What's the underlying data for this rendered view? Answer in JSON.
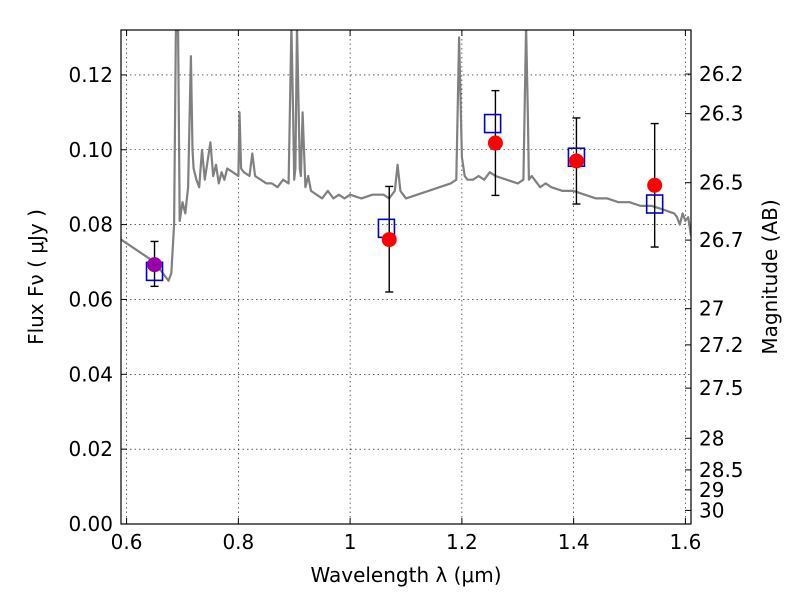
{
  "chart_data": {
    "type": "scatter",
    "xlabel": "Wavelength  λ (μm)",
    "ylabel": "Flux  Fν  ( μJy )",
    "ylabel_right": "Magnitude (AB)",
    "xlim": [
      0.59,
      1.61
    ],
    "ylim": [
      0.0,
      0.132
    ],
    "grid": true,
    "x_ticks": [
      {
        "value": 0.6,
        "label": "0.6"
      },
      {
        "value": 0.8,
        "label": "0.8"
      },
      {
        "value": 1.0,
        "label": "1"
      },
      {
        "value": 1.2,
        "label": "1.2"
      },
      {
        "value": 1.4,
        "label": "1.4"
      },
      {
        "value": 1.6,
        "label": "1.6"
      }
    ],
    "y_ticks": [
      {
        "value": 0.0,
        "label": "0.00"
      },
      {
        "value": 0.02,
        "label": "0.02"
      },
      {
        "value": 0.04,
        "label": "0.04"
      },
      {
        "value": 0.06,
        "label": "0.06"
      },
      {
        "value": 0.08,
        "label": "0.08"
      },
      {
        "value": 0.1,
        "label": "0.10"
      },
      {
        "value": 0.12,
        "label": "0.12"
      }
    ],
    "mag_ticks": [
      {
        "mag": 26.2,
        "label": "26.2"
      },
      {
        "mag": 26.3,
        "label": "26.3"
      },
      {
        "mag": 26.5,
        "label": "26.5"
      },
      {
        "mag": 26.7,
        "label": "26.7"
      },
      {
        "mag": 27.0,
        "label": "27"
      },
      {
        "mag": 27.2,
        "label": "27.2"
      },
      {
        "mag": 27.5,
        "label": "27.5"
      },
      {
        "mag": 28.0,
        "label": "28"
      },
      {
        "mag": 28.5,
        "label": "28.5"
      },
      {
        "mag": 29.0,
        "label": "29"
      },
      {
        "mag": 30.0,
        "label": "30"
      }
    ],
    "series": [
      {
        "kind": "observed",
        "marker": "circle",
        "points": [
          {
            "x": 0.65,
            "y": 0.0693,
            "yerr_low": 0.0058,
            "yerr_high": 0.0062,
            "color": "#9900aa"
          },
          {
            "x": 1.07,
            "y": 0.076,
            "yerr_low": 0.014,
            "yerr_high": 0.0142,
            "color": "#ff0000"
          },
          {
            "x": 1.26,
            "y": 0.1018,
            "yerr_low": 0.014,
            "yerr_high": 0.014,
            "color": "#ff0000"
          },
          {
            "x": 1.405,
            "y": 0.097,
            "yerr_low": 0.0115,
            "yerr_high": 0.0115,
            "color": "#ff0000"
          },
          {
            "x": 1.545,
            "y": 0.0905,
            "yerr_low": 0.0165,
            "yerr_high": 0.0165,
            "color": "#ff0000"
          }
        ]
      },
      {
        "kind": "model",
        "marker": "square",
        "color": "#0000cc",
        "points": [
          {
            "x": 0.65,
            "y": 0.0675
          },
          {
            "x": 1.065,
            "y": 0.079
          },
          {
            "x": 1.255,
            "y": 0.107
          },
          {
            "x": 1.405,
            "y": 0.098
          },
          {
            "x": 1.545,
            "y": 0.0855
          }
        ]
      }
    ],
    "spectrum": {
      "color": "#808080",
      "x": [
        0.59,
        0.6,
        0.62,
        0.64,
        0.66,
        0.67,
        0.675,
        0.68,
        0.685,
        0.688,
        0.69,
        0.692,
        0.695,
        0.7,
        0.705,
        0.71,
        0.715,
        0.718,
        0.72,
        0.725,
        0.73,
        0.735,
        0.74,
        0.745,
        0.75,
        0.755,
        0.76,
        0.765,
        0.77,
        0.775,
        0.78,
        0.79,
        0.8,
        0.802,
        0.805,
        0.81,
        0.82,
        0.825,
        0.83,
        0.84,
        0.85,
        0.86,
        0.87,
        0.88,
        0.89,
        0.895,
        0.898,
        0.9,
        0.902,
        0.905,
        0.91,
        0.912,
        0.915,
        0.92,
        0.925,
        0.93,
        0.94,
        0.95,
        0.96,
        0.97,
        0.98,
        0.99,
        1.0,
        1.02,
        1.04,
        1.06,
        1.07,
        1.08,
        1.085,
        1.09,
        1.095,
        1.1,
        1.12,
        1.14,
        1.16,
        1.18,
        1.19,
        1.195,
        1.2,
        1.205,
        1.21,
        1.22,
        1.23,
        1.24,
        1.25,
        1.26,
        1.28,
        1.3,
        1.31,
        1.315,
        1.318,
        1.32,
        1.325,
        1.33,
        1.34,
        1.35,
        1.36,
        1.38,
        1.4,
        1.42,
        1.44,
        1.46,
        1.48,
        1.5,
        1.52,
        1.54,
        1.56,
        1.58,
        1.585,
        1.59,
        1.595,
        1.6,
        1.605,
        1.61
      ],
      "y": [
        0.076,
        0.075,
        0.073,
        0.071,
        0.068,
        0.066,
        0.065,
        0.067,
        0.08,
        0.13,
        0.14,
        0.135,
        0.081,
        0.086,
        0.083,
        0.09,
        0.125,
        0.1,
        0.095,
        0.092,
        0.09,
        0.1,
        0.092,
        0.097,
        0.102,
        0.093,
        0.096,
        0.091,
        0.094,
        0.092,
        0.095,
        0.094,
        0.093,
        0.11,
        0.095,
        0.094,
        0.093,
        0.099,
        0.093,
        0.092,
        0.091,
        0.091,
        0.09,
        0.092,
        0.091,
        0.133,
        0.11,
        0.092,
        0.095,
        0.133,
        0.095,
        0.093,
        0.11,
        0.09,
        0.093,
        0.089,
        0.088,
        0.087,
        0.089,
        0.087,
        0.088,
        0.087,
        0.088,
        0.087,
        0.088,
        0.088,
        0.087,
        0.089,
        0.096,
        0.089,
        0.088,
        0.087,
        0.088,
        0.089,
        0.09,
        0.091,
        0.092,
        0.13,
        0.098,
        0.093,
        0.092,
        0.092,
        0.093,
        0.092,
        0.094,
        0.093,
        0.092,
        0.091,
        0.092,
        0.133,
        0.11,
        0.092,
        0.093,
        0.092,
        0.09,
        0.091,
        0.09,
        0.089,
        0.089,
        0.088,
        0.087,
        0.087,
        0.086,
        0.086,
        0.085,
        0.085,
        0.084,
        0.083,
        0.082,
        0.08,
        0.083,
        0.081,
        0.082,
        0.077
      ]
    }
  }
}
